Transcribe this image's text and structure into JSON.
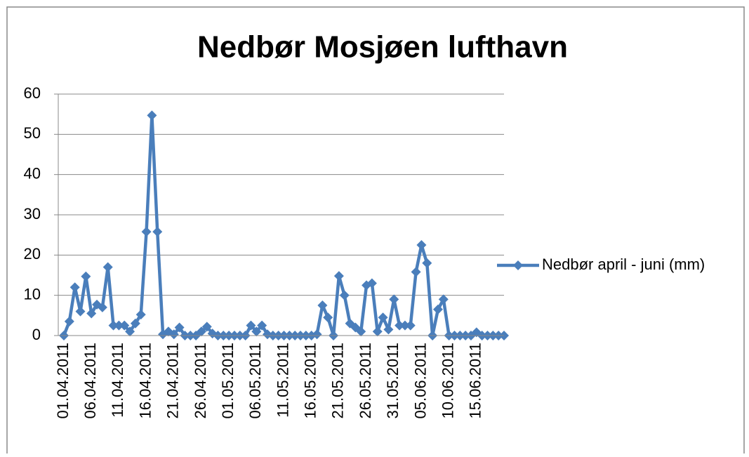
{
  "chart_data": {
    "type": "line",
    "title": "Nedbør Mosjøen lufthavn",
    "categories": [
      "01.04.2011",
      null,
      null,
      null,
      null,
      "06.04.2011",
      null,
      null,
      null,
      null,
      "11.04.2011",
      null,
      null,
      null,
      null,
      "16.04.2011",
      null,
      null,
      null,
      null,
      "21.04.2011",
      null,
      null,
      null,
      null,
      "26.04.2011",
      null,
      null,
      null,
      null,
      "01.05.2011",
      null,
      null,
      null,
      null,
      "06.05.2011",
      null,
      null,
      null,
      null,
      "11.05.2011",
      null,
      null,
      null,
      null,
      "16.05.2011",
      null,
      null,
      null,
      null,
      "21.05.2011",
      null,
      null,
      null,
      null,
      "26.05.2011",
      null,
      null,
      null,
      null,
      "31.05.2011",
      null,
      null,
      null,
      null,
      "05.06.2011",
      null,
      null,
      null,
      null,
      "10.06.2011",
      null,
      null,
      null,
      null,
      "15.06.2011",
      null,
      null,
      null,
      null,
      null
    ],
    "series": [
      {
        "name": "Nedbør april - juni (mm)",
        "color": "#4a7ebb",
        "values": [
          0,
          3.5,
          12,
          6,
          14.7,
          5.5,
          7.7,
          7,
          17,
          2.5,
          2.5,
          2.5,
          1,
          3,
          5.2,
          25.8,
          54.7,
          25.8,
          0.3,
          1,
          0.3,
          2,
          0,
          0,
          0,
          1,
          2.2,
          0.5,
          0,
          0,
          0,
          0,
          0,
          0,
          2.5,
          1,
          2.5,
          0.3,
          0,
          0,
          0,
          0,
          0,
          0,
          0,
          0,
          0.3,
          7.5,
          4.5,
          0,
          14.8,
          10,
          3,
          2,
          1,
          12.5,
          13,
          1,
          4.5,
          1.5,
          9,
          2.5,
          2.5,
          2.5,
          15.8,
          22.5,
          18,
          0,
          6.5,
          9,
          0,
          0,
          0,
          0,
          0,
          0.8,
          0,
          0,
          0,
          0,
          0
        ]
      }
    ],
    "ylim": [
      0,
      60
    ],
    "yticks": [
      0,
      10,
      20,
      30,
      40,
      50,
      60
    ],
    "grid": true,
    "legend": "right"
  }
}
